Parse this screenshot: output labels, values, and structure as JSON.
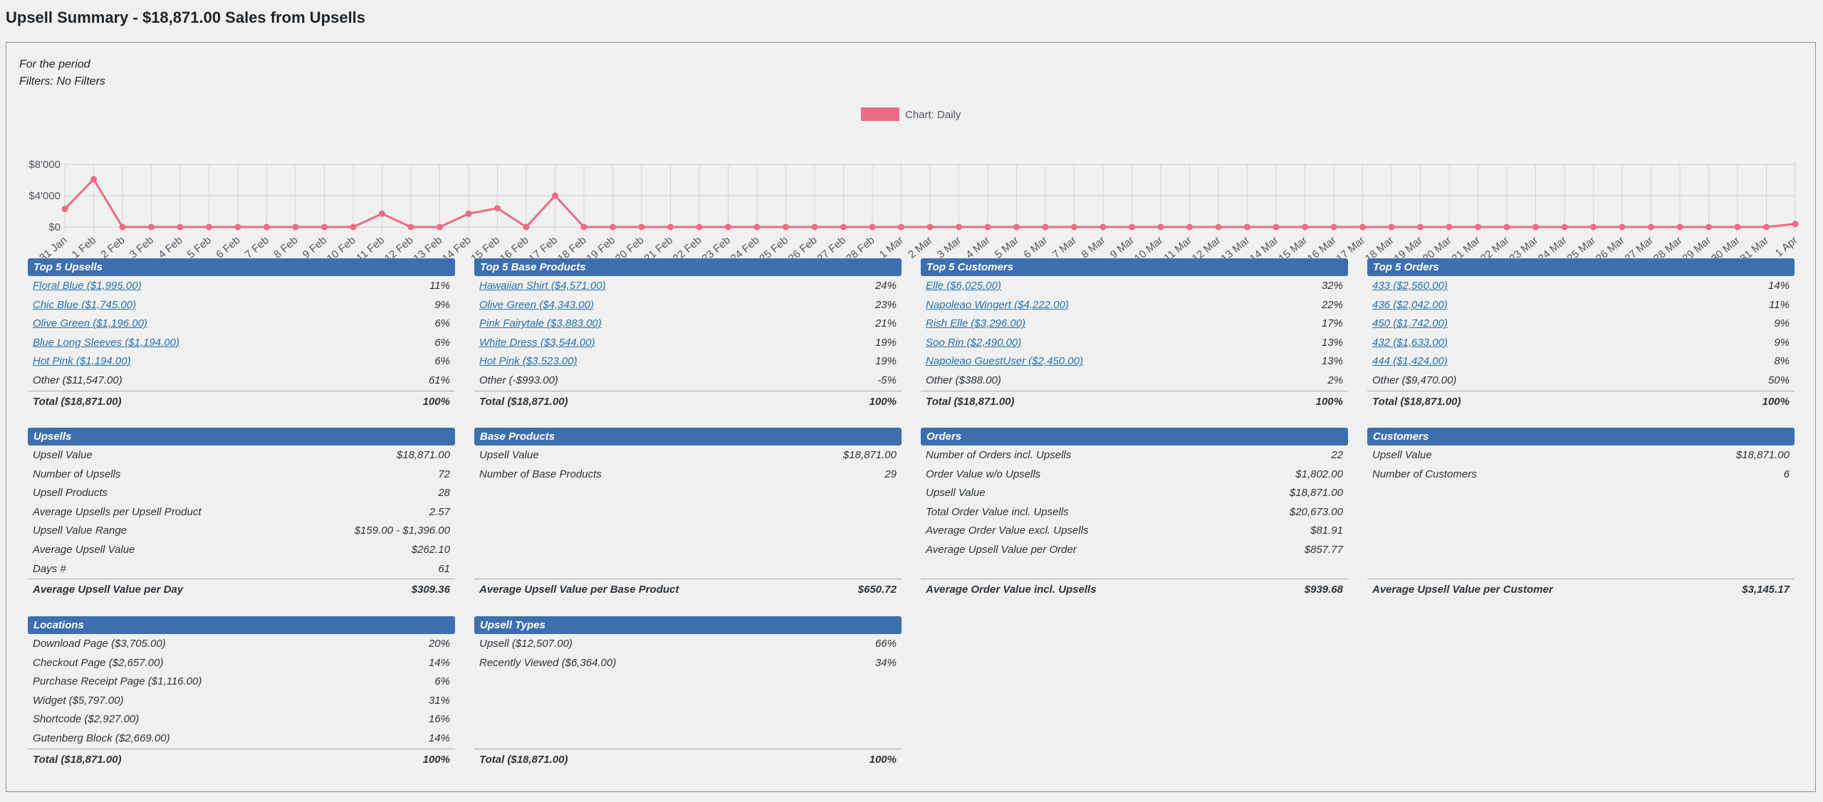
{
  "title": "Upsell Summary - $18,871.00 Sales from Upsells",
  "period": "For the period",
  "filters": "Filters: No Filters",
  "colors": {
    "accent": "#3d6faf",
    "series": "#ea6c85",
    "link": "#2271b1"
  },
  "chart_data": {
    "type": "line",
    "legend": "Chart: Daily",
    "legend_position": "top-center",
    "grid": true,
    "y_ticks": [
      "$0",
      "$4'000",
      "$8'000"
    ],
    "ylim": [
      0,
      8000
    ],
    "x": [
      "31 Jan",
      "1 Feb",
      "2 Feb",
      "3 Feb",
      "4 Feb",
      "5 Feb",
      "6 Feb",
      "7 Feb",
      "8 Feb",
      "9 Feb",
      "10 Feb",
      "11 Feb",
      "12 Feb",
      "13 Feb",
      "14 Feb",
      "15 Feb",
      "16 Feb",
      "17 Feb",
      "18 Feb",
      "19 Feb",
      "20 Feb",
      "21 Feb",
      "22 Feb",
      "23 Feb",
      "24 Feb",
      "25 Feb",
      "26 Feb",
      "27 Feb",
      "28 Feb",
      "1 Mar",
      "2 Mar",
      "3 Mar",
      "4 Mar",
      "5 Mar",
      "6 Mar",
      "7 Mar",
      "8 Mar",
      "9 Mar",
      "10 Mar",
      "11 Mar",
      "12 Mar",
      "13 Mar",
      "14 Mar",
      "15 Mar",
      "16 Mar",
      "17 Mar",
      "18 Mar",
      "19 Mar",
      "20 Mar",
      "21 Mar",
      "22 Mar",
      "23 Mar",
      "24 Mar",
      "25 Mar",
      "26 Mar",
      "27 Mar",
      "28 Mar",
      "29 Mar",
      "30 Mar",
      "31 Mar",
      "1 Apr"
    ],
    "series": [
      {
        "name": "Chart: Daily",
        "values": [
          2300,
          6100,
          0,
          0,
          0,
          0,
          0,
          0,
          0,
          0,
          0,
          1700,
          0,
          0,
          1700,
          2400,
          0,
          4000,
          0,
          0,
          0,
          0,
          0,
          0,
          0,
          0,
          0,
          0,
          0,
          0,
          0,
          0,
          0,
          0,
          0,
          0,
          0,
          0,
          0,
          0,
          0,
          0,
          0,
          0,
          0,
          0,
          0,
          0,
          0,
          0,
          0,
          0,
          0,
          0,
          0,
          0,
          0,
          0,
          0,
          0,
          400
        ]
      }
    ]
  },
  "panels": {
    "top_upsells": {
      "title": "Top 5 Upsells",
      "rows": [
        {
          "label": "Floral Blue ($1,995.00)",
          "value": "11%"
        },
        {
          "label": "Chic Blue ($1,745.00)",
          "value": "9%"
        },
        {
          "label": "Olive Green ($1,196.00)",
          "value": "6%"
        },
        {
          "label": "Blue Long Sleeves ($1,194.00)",
          "value": "6%"
        },
        {
          "label": "Hot Pink ($1,194.00)",
          "value": "6%"
        },
        {
          "label": "Other  ($11,547.00)",
          "value": "61%"
        }
      ],
      "total": {
        "label": "Total  ($18,871.00)",
        "value": "100%"
      }
    },
    "top_base_products": {
      "title": "Top 5 Base Products",
      "rows": [
        {
          "label": "Hawaiian Shirt ($4,571.00)",
          "value": "24%"
        },
        {
          "label": "Olive Green ($4,343.00)",
          "value": "23%"
        },
        {
          "label": "Pink Fairytale ($3,883.00)",
          "value": "21%"
        },
        {
          "label": "White Dress ($3,544.00)",
          "value": "19%"
        },
        {
          "label": "Hot Pink ($3,523.00)",
          "value": "19%"
        },
        {
          "label": "Other  (-$993.00)",
          "value": "-5%"
        }
      ],
      "total": {
        "label": "Total  ($18,871.00)",
        "value": "100%"
      }
    },
    "top_customers": {
      "title": "Top 5 Customers",
      "rows": [
        {
          "label": "Elle ($6,025.00)",
          "value": "32%"
        },
        {
          "label": "Napoleao Wingert ($4,222.00)",
          "value": "22%"
        },
        {
          "label": "Rish Elle ($3,296.00)",
          "value": "17%"
        },
        {
          "label": "Soo Rin ($2,490.00)",
          "value": "13%"
        },
        {
          "label": "Napoleao GuestUser ($2,450.00)",
          "value": "13%"
        },
        {
          "label": "Other  ($388.00)",
          "value": "2%"
        }
      ],
      "total": {
        "label": "Total  ($18,871.00)",
        "value": "100%"
      }
    },
    "top_orders": {
      "title": "Top 5 Orders",
      "rows": [
        {
          "label": "433 ($2,560.00)",
          "value": "14%"
        },
        {
          "label": "436 ($2,042.00)",
          "value": "11%"
        },
        {
          "label": "450 ($1,742.00)",
          "value": "9%"
        },
        {
          "label": "432 ($1,633.00)",
          "value": "9%"
        },
        {
          "label": "444 ($1,424.00)",
          "value": "8%"
        },
        {
          "label": "Other  ($9,470.00)",
          "value": "50%"
        }
      ],
      "total": {
        "label": "Total  ($18,871.00)",
        "value": "100%"
      }
    },
    "upsells": {
      "title": "Upsells",
      "rows": [
        {
          "label": "Upsell Value",
          "value": "$18,871.00"
        },
        {
          "label": "Number of Upsells",
          "value": "72"
        },
        {
          "label": "Upsell Products",
          "value": "28"
        },
        {
          "label": "Average Upsells per Upsell Product",
          "value": "2.57"
        },
        {
          "label": "Upsell Value Range",
          "value": "$159.00 - $1,396.00"
        },
        {
          "label": "Average Upsell Value",
          "value": "$262.10"
        },
        {
          "label": "Days #",
          "value": "61"
        }
      ],
      "total": {
        "label": "Average Upsell Value per Day",
        "value": "$309.36"
      }
    },
    "base_products": {
      "title": "Base Products",
      "rows": [
        {
          "label": "Upsell Value",
          "value": "$18,871.00"
        },
        {
          "label": "Number of Base Products",
          "value": "29"
        }
      ],
      "total": {
        "label": "Average Upsell Value per Base Product",
        "value": "$650.72"
      }
    },
    "orders": {
      "title": "Orders",
      "rows": [
        {
          "label": "Number of Orders incl. Upsells",
          "value": "22"
        },
        {
          "label": "Order Value w/o Upsells",
          "value": "$1,802.00"
        },
        {
          "label": "Upsell Value",
          "value": "$18,871.00"
        },
        {
          "label": "Total Order Value incl. Upsells",
          "value": "$20,673.00"
        },
        {
          "label": "Average Order Value excl. Upsells",
          "value": "$81.91"
        },
        {
          "label": "Average Upsell Value per Order",
          "value": "$857.77"
        }
      ],
      "total": {
        "label": "Average Order Value incl. Upsells",
        "value": "$939.68"
      }
    },
    "customers": {
      "title": "Customers",
      "rows": [
        {
          "label": "Upsell Value",
          "value": "$18,871.00"
        },
        {
          "label": "Number of Customers",
          "value": "6"
        }
      ],
      "total": {
        "label": "Average Upsell Value per Customer",
        "value": "$3,145.17"
      }
    },
    "locations": {
      "title": "Locations",
      "rows": [
        {
          "label": "Download Page  ($3,705.00)",
          "value": "20%"
        },
        {
          "label": "Checkout Page  ($2,657.00)",
          "value": "14%"
        },
        {
          "label": "Purchase Receipt Page  ($1,116.00)",
          "value": "6%"
        },
        {
          "label": "Widget  ($5,797.00)",
          "value": "31%"
        },
        {
          "label": "Shortcode  ($2,927.00)",
          "value": "16%"
        },
        {
          "label": "Gutenberg Block  ($2,669.00)",
          "value": "14%"
        }
      ],
      "total": {
        "label": "Total  ($18,871.00)",
        "value": "100%"
      }
    },
    "upsell_types": {
      "title": "Upsell Types",
      "rows": [
        {
          "label": "Upsell  ($12,507.00)",
          "value": "66%"
        },
        {
          "label": "Recently Viewed  ($6,364.00)",
          "value": "34%"
        }
      ],
      "total": {
        "label": "Total  ($18,871.00)",
        "value": "100%"
      }
    }
  }
}
